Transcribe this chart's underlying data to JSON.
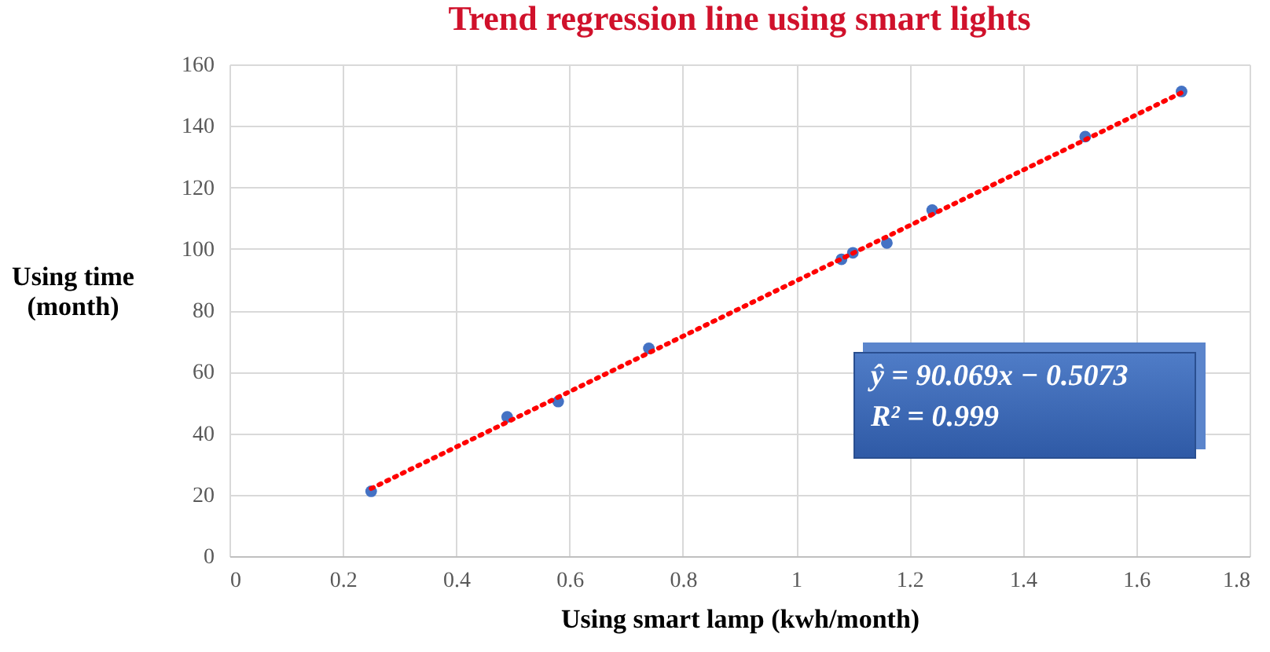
{
  "chart_data": {
    "type": "scatter",
    "title": "Trend regression line using smart lights",
    "xlabel": "Using smart lamp (kwh/month)",
    "ylabel": "Using time (month)",
    "xlim": [
      0,
      1.8
    ],
    "xticks": [
      0,
      0.2,
      0.4,
      0.6,
      0.8,
      1,
      1.2,
      1.4,
      1.6,
      1.8
    ],
    "ylim": [
      0,
      160
    ],
    "yticks": [
      0,
      20,
      40,
      60,
      80,
      100,
      120,
      140,
      160
    ],
    "grid": true,
    "marker": "circle",
    "annotations": [
      "ŷ = 90.069x − 0.5073",
      "R² = 0.999"
    ],
    "series": [
      {
        "color": "#4472c4",
        "x": [
          0.25,
          0.49,
          0.58,
          0.74,
          1.08,
          1.1,
          1.16,
          1.24,
          1.51,
          1.68
        ],
        "values": [
          21.1,
          45.3,
          50.3,
          67.6,
          96.6,
          98.7,
          101.9,
          112.6,
          136.5,
          151.2
        ]
      },
      {
        "type": "line",
        "marker": "none",
        "color": "#ff0000",
        "line_style": "dotted",
        "x": [
          0.25,
          1.68
        ],
        "values": [
          22.0,
          150.8
        ]
      }
    ]
  }
}
